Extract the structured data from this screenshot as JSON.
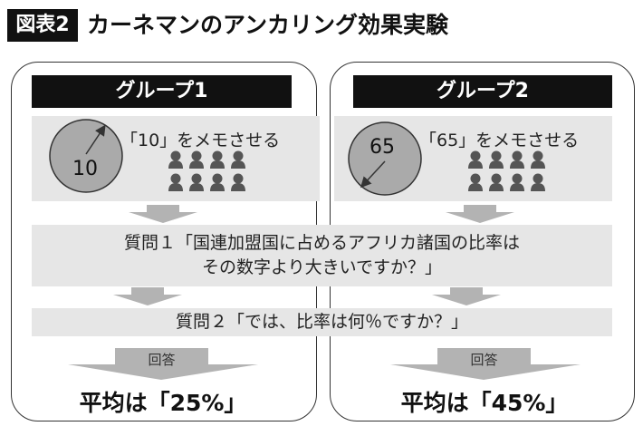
{
  "header": {
    "tag": "図表2",
    "title": "カーネマンのアンカリング効果実験"
  },
  "groups": [
    {
      "label": "グループ1",
      "wheel_number": "10",
      "memo": "「10」をメモさせる",
      "answer_label": "回答",
      "result": "平均は「25%」"
    },
    {
      "label": "グループ2",
      "wheel_number": "65",
      "memo": "「65」をメモさせる",
      "answer_label": "回答",
      "result": "平均は「45%」"
    }
  ],
  "question1": {
    "line1": "質問１「国連加盟国に占めるアフリカ諸国の比率は",
    "line2": "その数字より大きいですか？」"
  },
  "question2": "質問２「では、比率は何％ですか？」",
  "colors": {
    "band": "#e6e6e6",
    "arrow": "#b3b3b3",
    "wheel": "#aaaaaa",
    "person": "#555555",
    "header_bg": "#111111"
  }
}
